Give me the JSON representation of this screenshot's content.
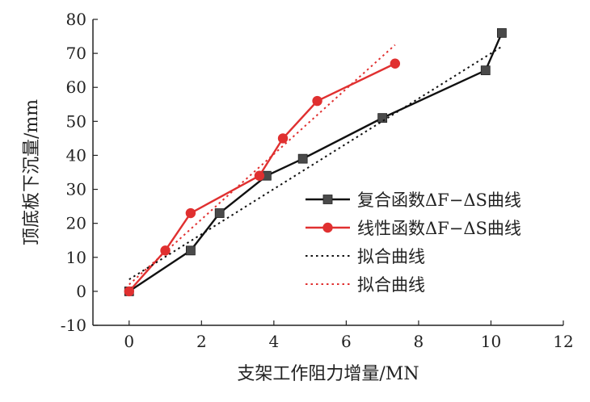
{
  "chart_data": {
    "type": "line",
    "xlabel": "支架工作阻力增量/MN",
    "ylabel": "顶底板下沉量/mm",
    "xlim": [
      -1,
      12
    ],
    "ylim": [
      -10,
      80
    ],
    "xticks": [
      "0",
      "2",
      "4",
      "6",
      "8",
      "10",
      "12"
    ],
    "yticks": [
      "-10",
      "0",
      "10",
      "20",
      "30",
      "40",
      "50",
      "60",
      "70",
      "80"
    ],
    "grid": false,
    "legend_position": "bottom-right",
    "series": [
      {
        "name": "复合函数ΔF−ΔS曲线",
        "marker": "square",
        "line_style": "solid",
        "color": "#111111",
        "x": [
          0,
          1.7,
          2.5,
          3.8,
          4.8,
          7.0,
          9.85,
          10.3
        ],
        "y": [
          0,
          12,
          23,
          34,
          39,
          51,
          65,
          76
        ]
      },
      {
        "name": "线性函数ΔF−ΔS曲线",
        "marker": "circle",
        "line_style": "solid",
        "color": "#e03030",
        "x": [
          0,
          1.0,
          1.7,
          3.6,
          4.25,
          5.2,
          7.35
        ],
        "y": [
          0,
          12,
          23,
          34,
          45,
          56,
          67
        ]
      },
      {
        "name": "拟合曲线",
        "marker": "none",
        "line_style": "dotted",
        "color": "#111111",
        "x": [
          0,
          10.3
        ],
        "y": [
          3.5,
          72
        ]
      },
      {
        "name": "拟合曲线",
        "marker": "none",
        "line_style": "dotted",
        "color": "#e03030",
        "x": [
          0,
          7.35
        ],
        "y": [
          2,
          72.5
        ]
      }
    ]
  }
}
